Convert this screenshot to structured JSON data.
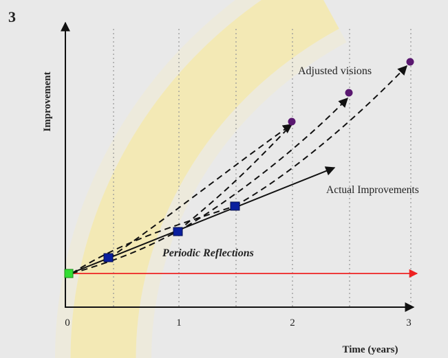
{
  "slide_number": "3",
  "y_axis_label": "Improvement",
  "x_axis_label": "Time (years)",
  "x_ticks": [
    "0",
    "1",
    "2",
    "3"
  ],
  "labels": {
    "adjusted_visions": "Adjusted visions",
    "actual_improvements": "Actual Improvements",
    "periodic_reflections": "Periodic Reflections"
  },
  "colors": {
    "background": "#e9e9e9",
    "highlight_band": "#f3e7a6",
    "baseline": "#ee2222",
    "start_marker": "#33dd33",
    "reflection_marker": "#0a1f9e",
    "vision_marker": "#5a1870",
    "axis": "#111111",
    "gridline": "#9a9a9a"
  }
}
